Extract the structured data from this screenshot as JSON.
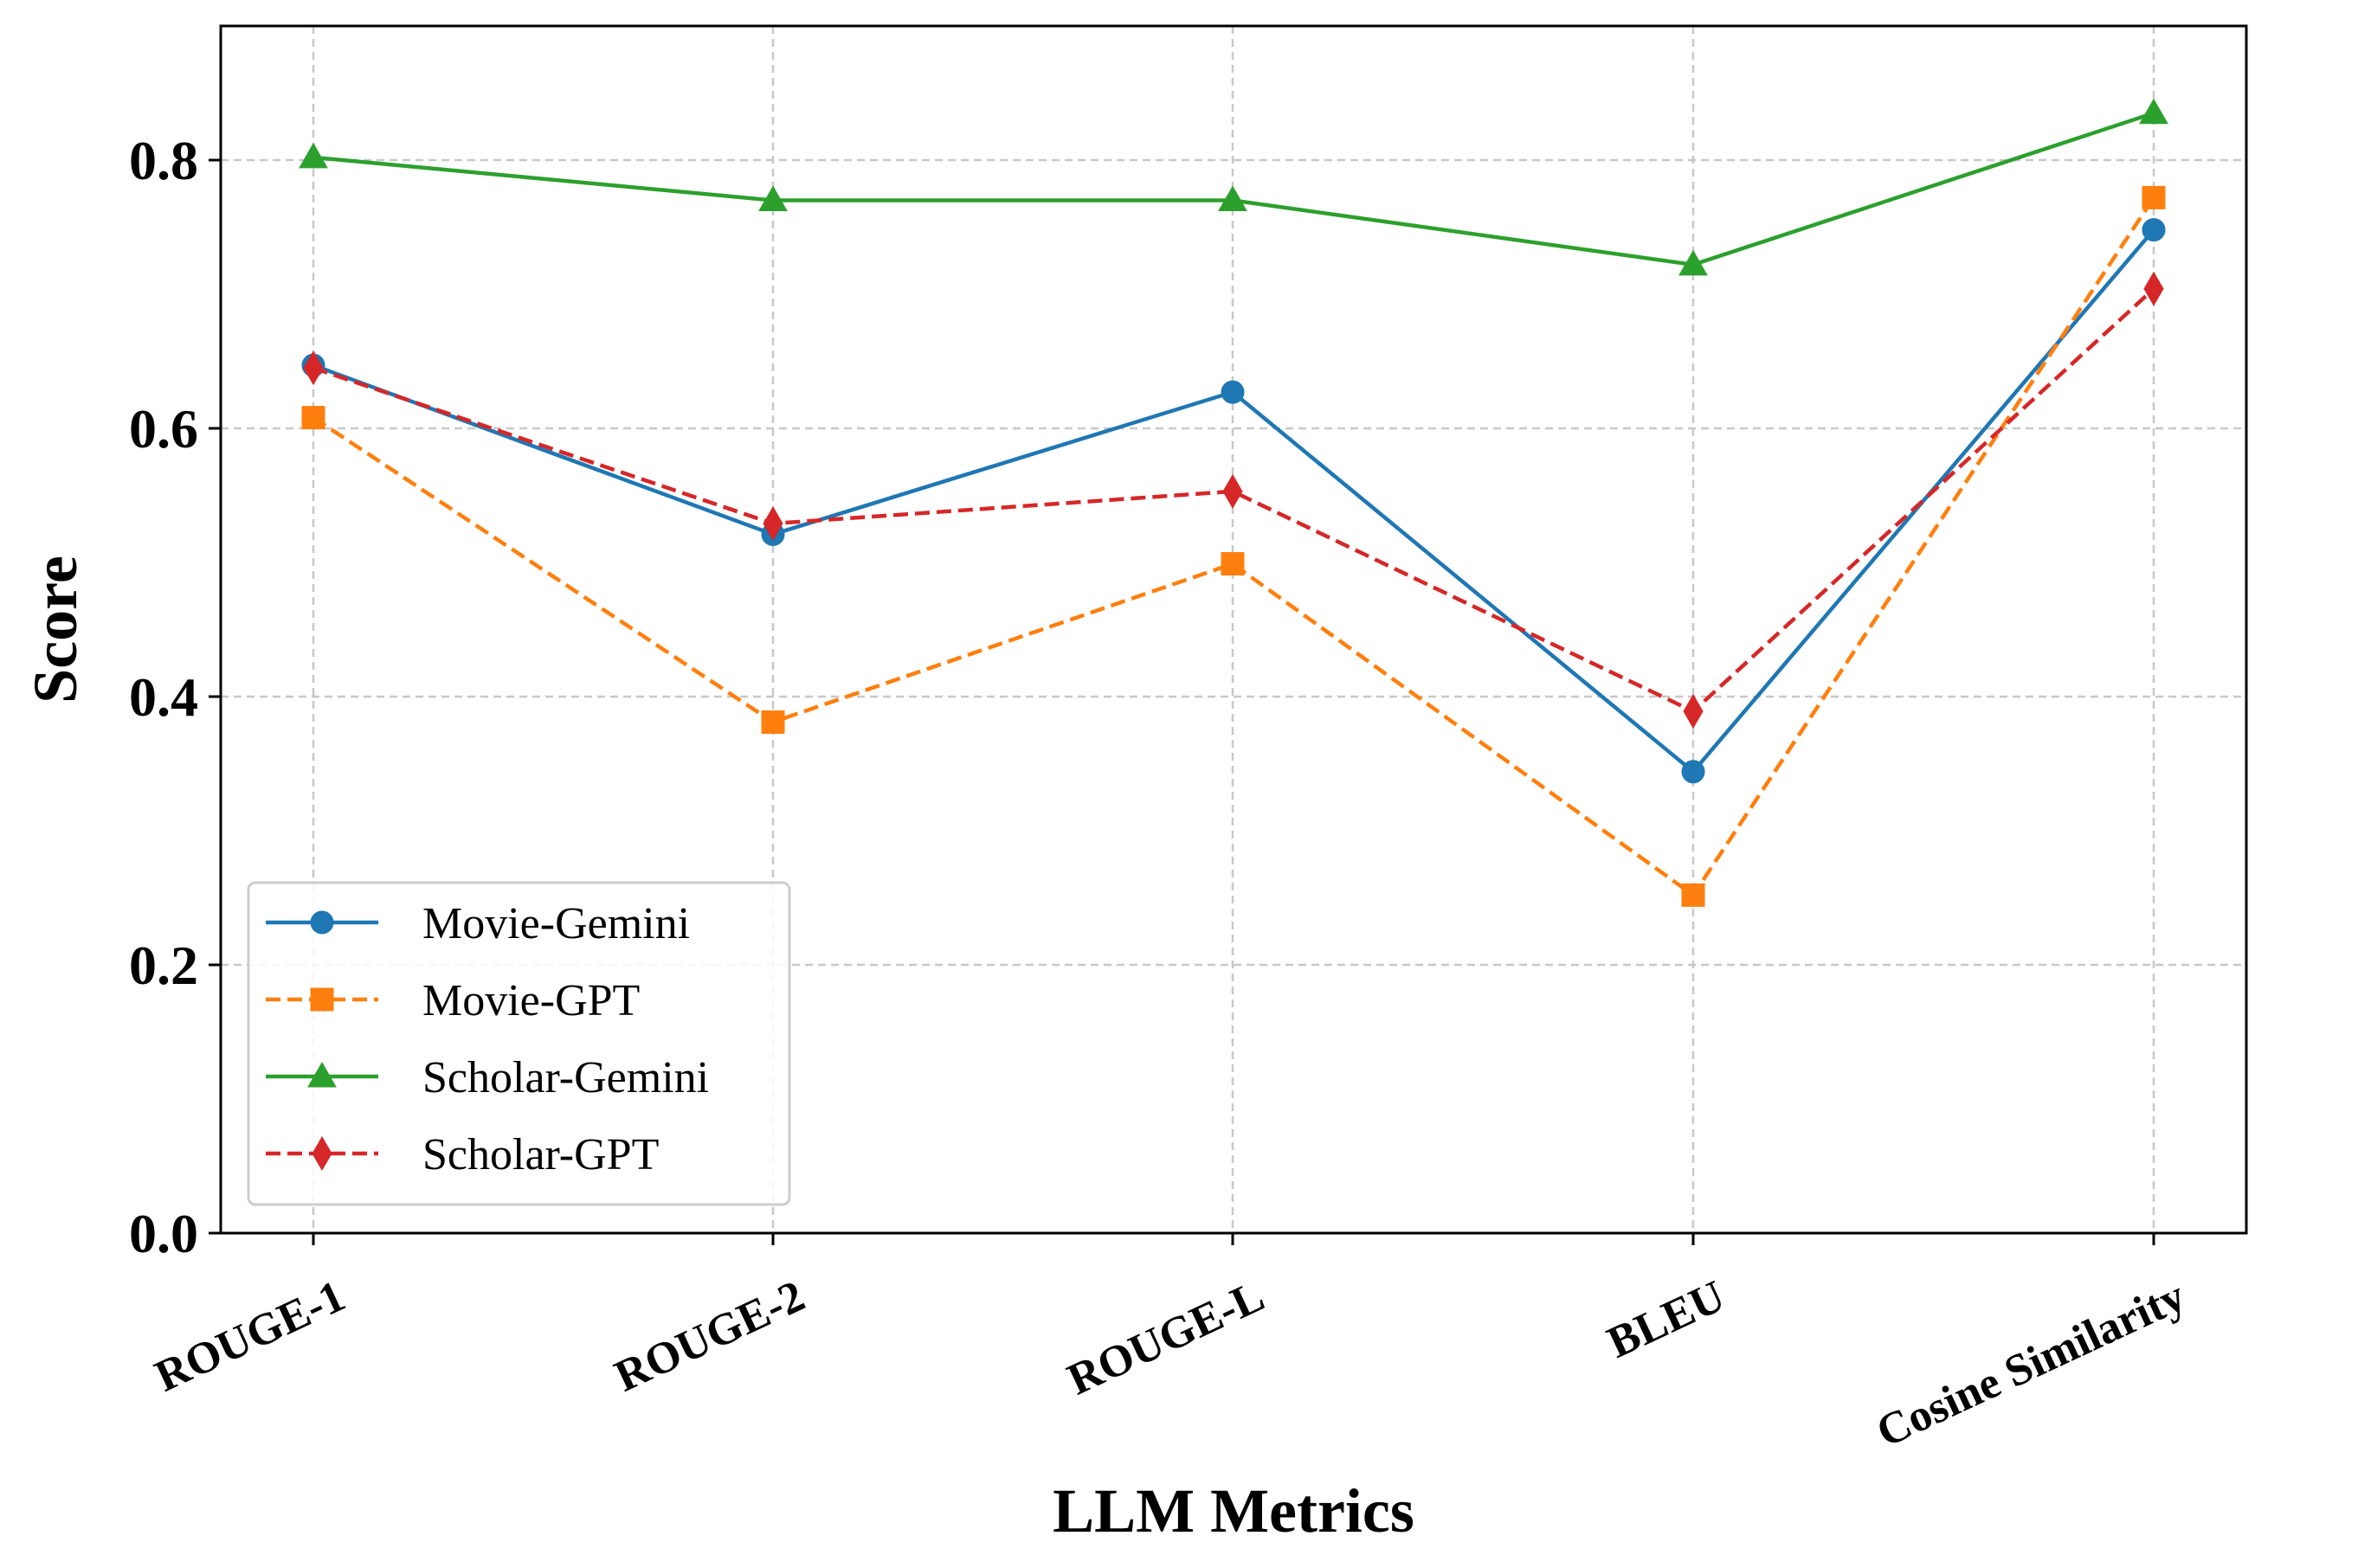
{
  "chart_data": {
    "type": "line",
    "title": "",
    "xlabel": "LLM Metrics",
    "ylabel": "Score",
    "categories": [
      "ROUGE-1",
      "ROUGE-2",
      "ROUGE-L",
      "BLEU",
      "Cosine Similarity"
    ],
    "ylim": [
      0.0,
      0.9
    ],
    "yticks": [
      "0.0",
      "0.2",
      "0.4",
      "0.6",
      "0.8"
    ],
    "grid": true,
    "legend_position": "lower-left",
    "series": [
      {
        "name": "Movie-Gemini",
        "values": [
          0.647,
          0.521,
          0.627,
          0.344,
          0.748
        ],
        "color": "#1f77b4",
        "marker": "circle",
        "dash": "solid"
      },
      {
        "name": "Movie-GPT",
        "values": [
          0.608,
          0.381,
          0.499,
          0.252,
          0.772
        ],
        "color": "#ff7f0e",
        "marker": "square",
        "dash": "dashed"
      },
      {
        "name": "Scholar-Gemini",
        "values": [
          0.802,
          0.77,
          0.77,
          0.722,
          0.835
        ],
        "color": "#2ca02c",
        "marker": "triangle",
        "dash": "solid"
      },
      {
        "name": "Scholar-GPT",
        "values": [
          0.645,
          0.529,
          0.553,
          0.389,
          0.704
        ],
        "color": "#d62728",
        "marker": "diamond",
        "dash": "dashed"
      }
    ]
  }
}
